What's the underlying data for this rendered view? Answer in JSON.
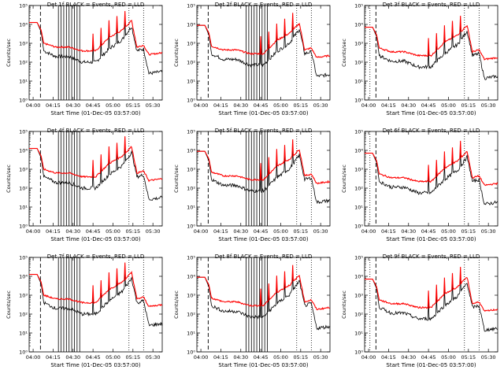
{
  "chart_data": {
    "type": "line",
    "yscale": "log",
    "ylabel": "Counts/sec",
    "xlabel": "Start Time (01-Dec-05 03:57:00)",
    "x_ticks": [
      "04:00",
      "04:15",
      "04:30",
      "04:45",
      "05:00",
      "05:15",
      "05:30"
    ],
    "x_tick_minutes": [
      3,
      18,
      33,
      48,
      63,
      78,
      93
    ],
    "xlim_minutes": [
      0,
      100
    ],
    "y_ticks": [
      "10⁰",
      "10¹",
      "10²",
      "10³",
      "10⁴",
      "10⁵"
    ],
    "ylim_exp": [
      0,
      5
    ],
    "series_colors": {
      "events": "#000000",
      "lld": "#ff0000"
    },
    "panels": [
      {
        "title": "Det 1f BLACK = Events, RED = LLD",
        "shift": 0.0,
        "events_exp": [
          [
            0,
            4.1
          ],
          [
            6,
            4.1
          ],
          [
            9,
            3.6
          ],
          [
            11,
            2.6
          ],
          [
            20,
            2.3
          ],
          [
            30,
            2.3
          ],
          [
            40,
            2.0
          ],
          [
            50,
            2.0
          ],
          [
            60,
            2.7
          ],
          [
            70,
            3.2
          ],
          [
            77,
            3.9
          ],
          [
            81,
            2.6
          ],
          [
            86,
            2.7
          ],
          [
            90,
            1.4
          ],
          [
            100,
            1.5
          ]
        ],
        "lld_exp": [
          [
            0,
            4.1
          ],
          [
            6,
            4.1
          ],
          [
            9,
            3.7
          ],
          [
            11,
            3.0
          ],
          [
            20,
            2.8
          ],
          [
            30,
            2.8
          ],
          [
            40,
            2.6
          ],
          [
            50,
            2.6
          ],
          [
            60,
            3.3
          ],
          [
            70,
            3.7
          ],
          [
            77,
            4.2
          ],
          [
            81,
            2.8
          ],
          [
            86,
            2.9
          ],
          [
            90,
            2.4
          ],
          [
            100,
            2.5
          ]
        ],
        "vlines_dash": [
          8.5
        ],
        "vlines_solid": [
          22,
          24,
          26,
          28,
          30,
          32,
          34,
          36,
          38
        ],
        "vlines_dot": [
          75,
          86
        ]
      },
      {
        "title": "Det 2f BLACK = Events, RED = LLD",
        "shift": -0.15,
        "events_exp": [
          [
            0,
            4.1
          ],
          [
            6,
            4.1
          ],
          [
            9,
            3.6
          ],
          [
            11,
            2.6
          ],
          [
            20,
            2.3
          ],
          [
            30,
            2.3
          ],
          [
            40,
            2.0
          ],
          [
            50,
            2.0
          ],
          [
            60,
            2.7
          ],
          [
            70,
            3.2
          ],
          [
            77,
            3.9
          ],
          [
            81,
            2.6
          ],
          [
            86,
            2.7
          ],
          [
            90,
            1.4
          ],
          [
            100,
            1.5
          ]
        ],
        "lld_exp": [
          [
            0,
            4.1
          ],
          [
            6,
            4.1
          ],
          [
            9,
            3.7
          ],
          [
            11,
            3.0
          ],
          [
            20,
            2.8
          ],
          [
            30,
            2.8
          ],
          [
            40,
            2.6
          ],
          [
            50,
            2.6
          ],
          [
            60,
            3.3
          ],
          [
            70,
            3.7
          ],
          [
            77,
            4.2
          ],
          [
            81,
            2.8
          ],
          [
            86,
            2.9
          ],
          [
            90,
            2.4
          ],
          [
            100,
            2.5
          ]
        ],
        "vlines_dash": [
          8.5
        ],
        "vlines_solid": [
          37,
          39,
          41,
          43,
          45,
          47,
          49,
          51,
          53
        ],
        "vlines_dot": [
          75,
          86
        ]
      },
      {
        "title": "Det 3f BLACK = Events, RED = LLD",
        "shift": -0.25,
        "events_exp": [
          [
            0,
            4.1
          ],
          [
            6,
            4.1
          ],
          [
            9,
            3.6
          ],
          [
            11,
            2.6
          ],
          [
            20,
            2.3
          ],
          [
            30,
            2.3
          ],
          [
            40,
            2.0
          ],
          [
            50,
            2.0
          ],
          [
            60,
            2.7
          ],
          [
            70,
            3.2
          ],
          [
            77,
            3.9
          ],
          [
            81,
            2.6
          ],
          [
            86,
            2.7
          ],
          [
            90,
            1.4
          ],
          [
            100,
            1.5
          ]
        ],
        "lld_exp": [
          [
            0,
            4.1
          ],
          [
            6,
            4.1
          ],
          [
            9,
            3.7
          ],
          [
            11,
            3.0
          ],
          [
            20,
            2.8
          ],
          [
            30,
            2.8
          ],
          [
            40,
            2.6
          ],
          [
            50,
            2.6
          ],
          [
            60,
            3.3
          ],
          [
            70,
            3.7
          ],
          [
            77,
            4.2
          ],
          [
            81,
            2.8
          ],
          [
            86,
            2.9
          ],
          [
            90,
            2.4
          ],
          [
            100,
            2.5
          ]
        ],
        "vlines_dash": [
          8.5
        ],
        "vlines_solid": [],
        "vlines_dot": [
          4,
          75,
          86
        ]
      },
      {
        "title": "Det 4f BLACK = Events, RED = LLD",
        "shift": 0.0,
        "events_exp": [
          [
            0,
            4.1
          ],
          [
            6,
            4.1
          ],
          [
            9,
            3.6
          ],
          [
            11,
            2.6
          ],
          [
            20,
            2.3
          ],
          [
            30,
            2.3
          ],
          [
            40,
            2.0
          ],
          [
            50,
            2.0
          ],
          [
            60,
            2.7
          ],
          [
            70,
            3.2
          ],
          [
            77,
            3.9
          ],
          [
            81,
            2.6
          ],
          [
            86,
            2.7
          ],
          [
            90,
            1.4
          ],
          [
            100,
            1.5
          ]
        ],
        "lld_exp": [
          [
            0,
            4.1
          ],
          [
            6,
            4.1
          ],
          [
            9,
            3.7
          ],
          [
            11,
            3.0
          ],
          [
            20,
            2.8
          ],
          [
            30,
            2.8
          ],
          [
            40,
            2.6
          ],
          [
            50,
            2.6
          ],
          [
            60,
            3.3
          ],
          [
            70,
            3.7
          ],
          [
            77,
            4.2
          ],
          [
            81,
            2.8
          ],
          [
            86,
            2.9
          ],
          [
            90,
            2.4
          ],
          [
            100,
            2.5
          ]
        ],
        "vlines_dash": [
          8.5
        ],
        "vlines_solid": [
          22,
          24,
          26,
          28,
          30,
          32,
          34,
          36,
          38
        ],
        "vlines_dot": [
          75,
          86
        ]
      },
      {
        "title": "Det 5f BLACK = Events, RED = LLD",
        "shift": -0.15,
        "events_exp": [
          [
            0,
            4.1
          ],
          [
            6,
            4.1
          ],
          [
            9,
            3.6
          ],
          [
            11,
            2.6
          ],
          [
            20,
            2.3
          ],
          [
            30,
            2.3
          ],
          [
            40,
            2.0
          ],
          [
            50,
            2.0
          ],
          [
            60,
            2.7
          ],
          [
            70,
            3.2
          ],
          [
            77,
            3.9
          ],
          [
            81,
            2.6
          ],
          [
            86,
            2.7
          ],
          [
            90,
            1.4
          ],
          [
            100,
            1.5
          ]
        ],
        "lld_exp": [
          [
            0,
            4.1
          ],
          [
            6,
            4.1
          ],
          [
            9,
            3.7
          ],
          [
            11,
            3.0
          ],
          [
            20,
            2.8
          ],
          [
            30,
            2.8
          ],
          [
            40,
            2.6
          ],
          [
            50,
            2.6
          ],
          [
            60,
            3.3
          ],
          [
            70,
            3.7
          ],
          [
            77,
            4.2
          ],
          [
            81,
            2.8
          ],
          [
            86,
            2.9
          ],
          [
            90,
            2.4
          ],
          [
            100,
            2.5
          ]
        ],
        "vlines_dash": [
          8.5
        ],
        "vlines_solid": [
          37,
          39,
          41,
          43,
          45,
          47,
          49,
          51,
          53
        ],
        "vlines_dot": [
          75,
          86
        ]
      },
      {
        "title": "Det 6f BLACK = Events, RED = LLD",
        "shift": -0.25,
        "events_exp": [
          [
            0,
            4.1
          ],
          [
            6,
            4.1
          ],
          [
            9,
            3.6
          ],
          [
            11,
            2.6
          ],
          [
            20,
            2.3
          ],
          [
            30,
            2.3
          ],
          [
            40,
            2.0
          ],
          [
            50,
            2.0
          ],
          [
            60,
            2.7
          ],
          [
            70,
            3.2
          ],
          [
            77,
            3.9
          ],
          [
            81,
            2.6
          ],
          [
            86,
            2.7
          ],
          [
            90,
            1.4
          ],
          [
            100,
            1.5
          ]
        ],
        "lld_exp": [
          [
            0,
            4.1
          ],
          [
            6,
            4.1
          ],
          [
            9,
            3.7
          ],
          [
            11,
            3.0
          ],
          [
            20,
            2.8
          ],
          [
            30,
            2.8
          ],
          [
            40,
            2.6
          ],
          [
            50,
            2.6
          ],
          [
            60,
            3.3
          ],
          [
            70,
            3.7
          ],
          [
            77,
            4.2
          ],
          [
            81,
            2.8
          ],
          [
            86,
            2.9
          ],
          [
            90,
            2.4
          ],
          [
            100,
            2.5
          ]
        ],
        "vlines_dash": [
          8.5
        ],
        "vlines_solid": [],
        "vlines_dot": [
          4,
          75,
          86
        ]
      },
      {
        "title": "Det 7f BLACK = Events, RED = LLD",
        "shift": 0.0,
        "events_exp": [
          [
            0,
            4.1
          ],
          [
            6,
            4.1
          ],
          [
            9,
            3.6
          ],
          [
            11,
            2.6
          ],
          [
            20,
            2.3
          ],
          [
            30,
            2.3
          ],
          [
            40,
            2.0
          ],
          [
            50,
            2.0
          ],
          [
            60,
            2.7
          ],
          [
            70,
            3.2
          ],
          [
            77,
            3.9
          ],
          [
            81,
            2.6
          ],
          [
            86,
            2.7
          ],
          [
            90,
            1.4
          ],
          [
            100,
            1.5
          ]
        ],
        "lld_exp": [
          [
            0,
            4.1
          ],
          [
            6,
            4.1
          ],
          [
            9,
            3.7
          ],
          [
            11,
            3.0
          ],
          [
            20,
            2.8
          ],
          [
            30,
            2.8
          ],
          [
            40,
            2.6
          ],
          [
            50,
            2.6
          ],
          [
            60,
            3.3
          ],
          [
            70,
            3.7
          ],
          [
            77,
            4.2
          ],
          [
            81,
            2.8
          ],
          [
            86,
            2.9
          ],
          [
            90,
            2.4
          ],
          [
            100,
            2.5
          ]
        ],
        "vlines_dash": [
          8.5
        ],
        "vlines_solid": [
          22,
          24,
          26,
          28,
          30,
          32,
          34,
          36,
          38
        ],
        "vlines_dot": [
          75,
          86
        ]
      },
      {
        "title": "Det 8f BLACK = Events, RED = LLD",
        "shift": -0.15,
        "events_exp": [
          [
            0,
            4.1
          ],
          [
            6,
            4.1
          ],
          [
            9,
            3.6
          ],
          [
            11,
            2.6
          ],
          [
            20,
            2.3
          ],
          [
            30,
            2.3
          ],
          [
            40,
            2.0
          ],
          [
            50,
            2.0
          ],
          [
            60,
            2.7
          ],
          [
            70,
            3.2
          ],
          [
            77,
            3.9
          ],
          [
            81,
            2.6
          ],
          [
            86,
            2.7
          ],
          [
            90,
            1.4
          ],
          [
            100,
            1.5
          ]
        ],
        "lld_exp": [
          [
            0,
            4.1
          ],
          [
            6,
            4.1
          ],
          [
            9,
            3.7
          ],
          [
            11,
            3.0
          ],
          [
            20,
            2.8
          ],
          [
            30,
            2.8
          ],
          [
            40,
            2.6
          ],
          [
            50,
            2.6
          ],
          [
            60,
            3.3
          ],
          [
            70,
            3.7
          ],
          [
            77,
            4.2
          ],
          [
            81,
            2.8
          ],
          [
            86,
            2.9
          ],
          [
            90,
            2.4
          ],
          [
            100,
            2.5
          ]
        ],
        "vlines_dash": [
          8.5
        ],
        "vlines_solid": [
          37,
          39,
          41,
          43,
          45,
          47,
          49,
          51,
          53
        ],
        "vlines_dot": [
          75,
          86
        ]
      },
      {
        "title": "Det 9f BLACK = Events, RED = LLD",
        "shift": -0.25,
        "events_exp": [
          [
            0,
            4.1
          ],
          [
            6,
            4.1
          ],
          [
            9,
            3.6
          ],
          [
            11,
            2.6
          ],
          [
            20,
            2.3
          ],
          [
            30,
            2.3
          ],
          [
            40,
            2.0
          ],
          [
            50,
            2.0
          ],
          [
            60,
            2.7
          ],
          [
            70,
            3.2
          ],
          [
            77,
            3.9
          ],
          [
            81,
            2.6
          ],
          [
            86,
            2.7
          ],
          [
            90,
            1.4
          ],
          [
            100,
            1.5
          ]
        ],
        "lld_exp": [
          [
            0,
            4.1
          ],
          [
            6,
            4.1
          ],
          [
            9,
            3.7
          ],
          [
            11,
            3.0
          ],
          [
            20,
            2.8
          ],
          [
            30,
            2.8
          ],
          [
            40,
            2.6
          ],
          [
            50,
            2.6
          ],
          [
            60,
            3.3
          ],
          [
            70,
            3.7
          ],
          [
            77,
            4.2
          ],
          [
            81,
            2.8
          ],
          [
            86,
            2.9
          ],
          [
            90,
            2.4
          ],
          [
            100,
            2.5
          ]
        ],
        "vlines_dash": [
          8.5
        ],
        "vlines_solid": [],
        "vlines_dot": [
          4,
          75,
          86
        ]
      }
    ]
  }
}
